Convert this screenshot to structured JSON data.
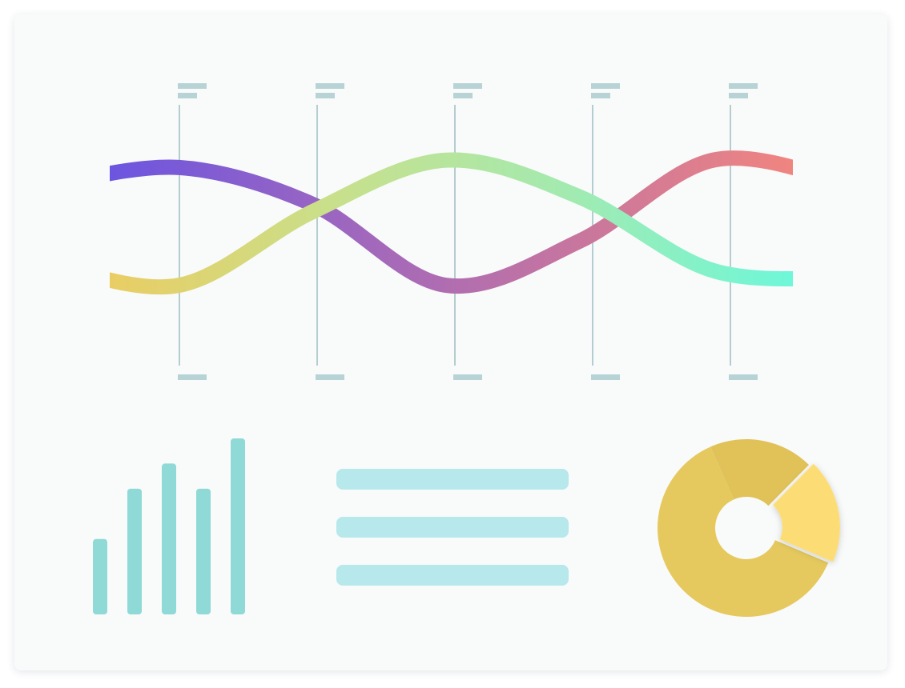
{
  "colors": {
    "card_bg": "#f9fafa",
    "guide_line": "#9dbfc2",
    "placeholder_label": "#b8d3d5",
    "bar_fill": "#8fdad6",
    "text_line": "#b7e8ec",
    "donut_main": "#e5c95e",
    "donut_dark": "#e0c258",
    "donut_highlight": "#fcdd75",
    "wave_a": [
      "#6c55e0",
      "#9c66c0",
      "#c575a0",
      "#f08580"
    ],
    "wave_b": [
      "#e9cd63",
      "#c8e08c",
      "#a3eab0",
      "#6ef7d9"
    ]
  },
  "chart_data": [
    {
      "type": "line",
      "title": "",
      "xlabel": "",
      "ylabel": "",
      "guides": 5,
      "series": [
        {
          "values": [
            0.55,
            0.8,
            0.3,
            -0.8,
            -0.2,
            0.9,
            0.6
          ]
        },
        {
          "values": [
            -0.5,
            -0.8,
            0.2,
            0.9,
            0.4,
            -0.6,
            -0.7
          ]
        }
      ]
    },
    {
      "type": "bar",
      "values": [
        3,
        5,
        6,
        5,
        7
      ],
      "ylim": [
        0,
        7
      ]
    },
    {
      "type": "pie",
      "values": [
        62,
        19,
        19
      ],
      "highlighted_index": 2
    }
  ],
  "text_lines": 3
}
